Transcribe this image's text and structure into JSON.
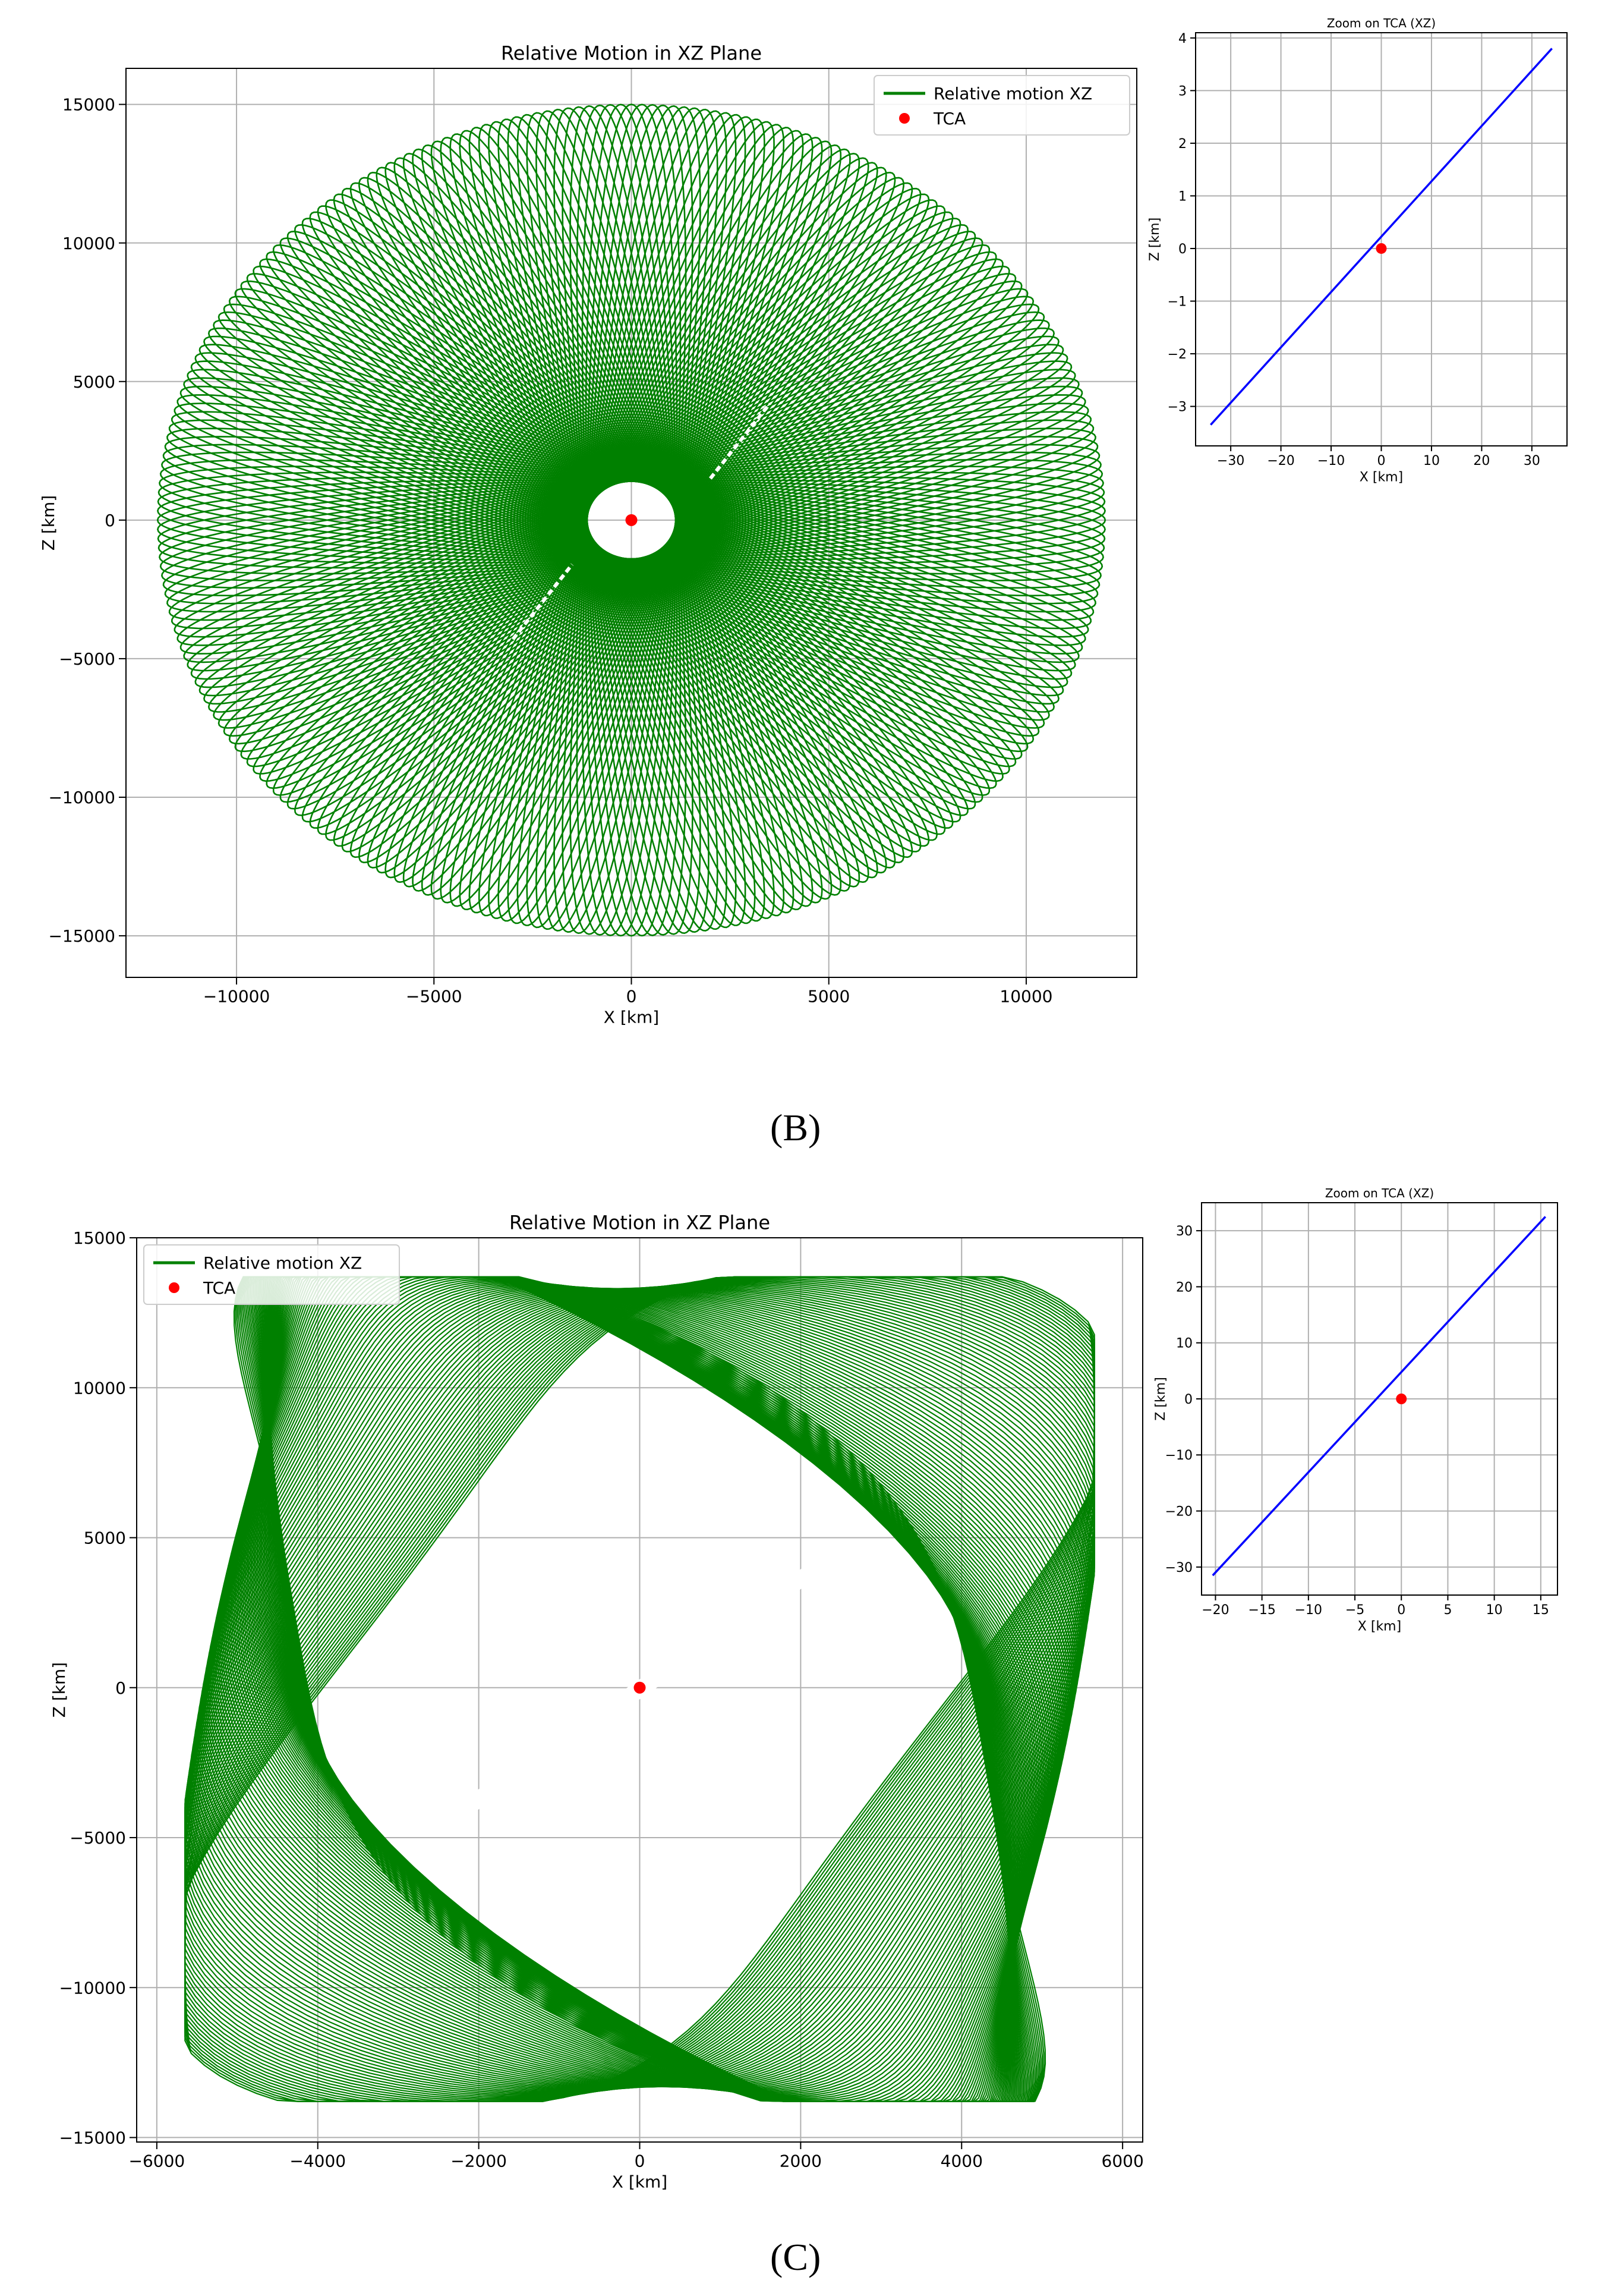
{
  "panel_labels": {
    "b": "(B)",
    "c": "(C)"
  },
  "colors": {
    "green": "#008000",
    "blue": "#0000ff",
    "red": "#ff0000",
    "grid": "#b0b0b0",
    "axes": "#000000"
  },
  "chart_data": [
    {
      "id": "b-main",
      "type": "line",
      "title": "Relative Motion in XZ Plane",
      "xlabel": "X [km]",
      "ylabel": "Z [km]",
      "xlim": [
        -12800,
        12800
      ],
      "ylim": [
        -16500,
        16300
      ],
      "xticks": [
        -10000,
        -5000,
        0,
        5000,
        10000
      ],
      "yticks": [
        -15000,
        -10000,
        -5000,
        0,
        5000,
        10000,
        15000
      ],
      "grid": true,
      "legend": "top-right",
      "series": [
        {
          "name": "Relative motion XZ",
          "color": "#008000",
          "kind": "line",
          "shape": "rotating-ellipse rosette",
          "x_extent": [
            -12000,
            12000
          ],
          "z_extent": [
            -15000,
            15000
          ]
        },
        {
          "name": "TCA",
          "color": "#ff0000",
          "kind": "marker",
          "x": [
            0
          ],
          "y": [
            0
          ]
        }
      ]
    },
    {
      "id": "b-zoom",
      "type": "line",
      "title": "Zoom on TCA (XZ)",
      "xlabel": "X [km]",
      "ylabel": "Z [km]",
      "xlim": [
        -37,
        37
      ],
      "ylim": [
        -3.75,
        4.1
      ],
      "xticks": [
        -30,
        -20,
        -10,
        0,
        10,
        20,
        30
      ],
      "yticks": [
        -3,
        -2,
        -1,
        0,
        1,
        2,
        3,
        4
      ],
      "grid": true,
      "series": [
        {
          "name": "line",
          "color": "#0000ff",
          "kind": "line",
          "x": [
            -34,
            34
          ],
          "y": [
            -3.35,
            3.8
          ]
        },
        {
          "name": "TCA",
          "color": "#ff0000",
          "kind": "marker",
          "x": [
            0
          ],
          "y": [
            0
          ]
        }
      ]
    },
    {
      "id": "c-main",
      "type": "line",
      "title": "Relative Motion in XZ Plane",
      "xlabel": "X [km]",
      "ylabel": "Z [km]",
      "xlim": [
        -6250,
        6250
      ],
      "ylim": [
        -15150,
        15000
      ],
      "xticks": [
        -6000,
        -4000,
        -2000,
        0,
        2000,
        4000,
        6000
      ],
      "yticks": [
        -15000,
        -10000,
        -5000,
        0,
        5000,
        10000,
        15000
      ],
      "grid": true,
      "legend": "top-left",
      "series": [
        {
          "name": "Relative motion XZ",
          "color": "#008000",
          "kind": "line",
          "shape": "sheared ellipse family",
          "x_extent": [
            -5650,
            5650
          ],
          "z_extent": [
            -13800,
            13800
          ]
        },
        {
          "name": "TCA",
          "color": "#ff0000",
          "kind": "marker",
          "x": [
            0
          ],
          "y": [
            0
          ]
        }
      ]
    },
    {
      "id": "c-zoom",
      "type": "line",
      "title": "Zoom on TCA (XZ)",
      "xlabel": "X [km]",
      "ylabel": "Z [km]",
      "xlim": [
        -21.5,
        16.8
      ],
      "ylim": [
        -35,
        35
      ],
      "xticks": [
        -20,
        -15,
        -10,
        -5,
        0,
        5,
        10,
        15
      ],
      "yticks": [
        -30,
        -20,
        -10,
        0,
        10,
        20,
        30
      ],
      "grid": true,
      "series": [
        {
          "name": "line",
          "color": "#0000ff",
          "kind": "line",
          "x": [
            -20.3,
            15.5
          ],
          "y": [
            -31.5,
            32.5
          ]
        },
        {
          "name": "TCA",
          "color": "#ff0000",
          "kind": "marker",
          "x": [
            0
          ],
          "y": [
            0
          ]
        }
      ]
    }
  ]
}
